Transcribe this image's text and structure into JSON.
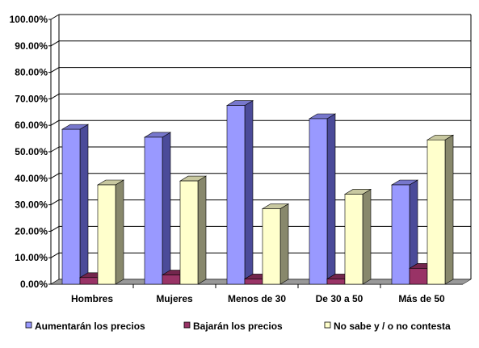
{
  "chart_data": {
    "type": "bar",
    "style": "3d-clustered",
    "categories": [
      "Hombres",
      "Mujeres",
      "Menos de 30",
      "De 30 a 50",
      "Más de 50"
    ],
    "series": [
      {
        "name": "Aumentarán los precios",
        "color": "#9999ff",
        "side_color": "#4b4b99",
        "top_color": "#7777cc",
        "values": [
          58.5,
          55.5,
          67.5,
          62.5,
          37.5
        ]
      },
      {
        "name": "Bajarán los precios",
        "color": "#993366",
        "side_color": "#4d1a33",
        "top_color": "#73264d",
        "values": [
          2.5,
          3.5,
          2.0,
          2.0,
          6.0
        ]
      },
      {
        "name": "No sabe y / o no contesta",
        "color": "#ffffcc",
        "side_color": "#88886c",
        "top_color": "#c8c8a0",
        "values": [
          37.5,
          39.0,
          28.5,
          34.0,
          54.5
        ]
      }
    ],
    "ylim": [
      0,
      100
    ],
    "y_ticks": [
      "0.00%",
      "10.00%",
      "20.00%",
      "30.00%",
      "40.00%",
      "50.00%",
      "60.00%",
      "70.00%",
      "80.00%",
      "90.00%",
      "100.00%"
    ],
    "gridlines": true,
    "legend_position": "bottom",
    "floor_color": "#999999"
  }
}
